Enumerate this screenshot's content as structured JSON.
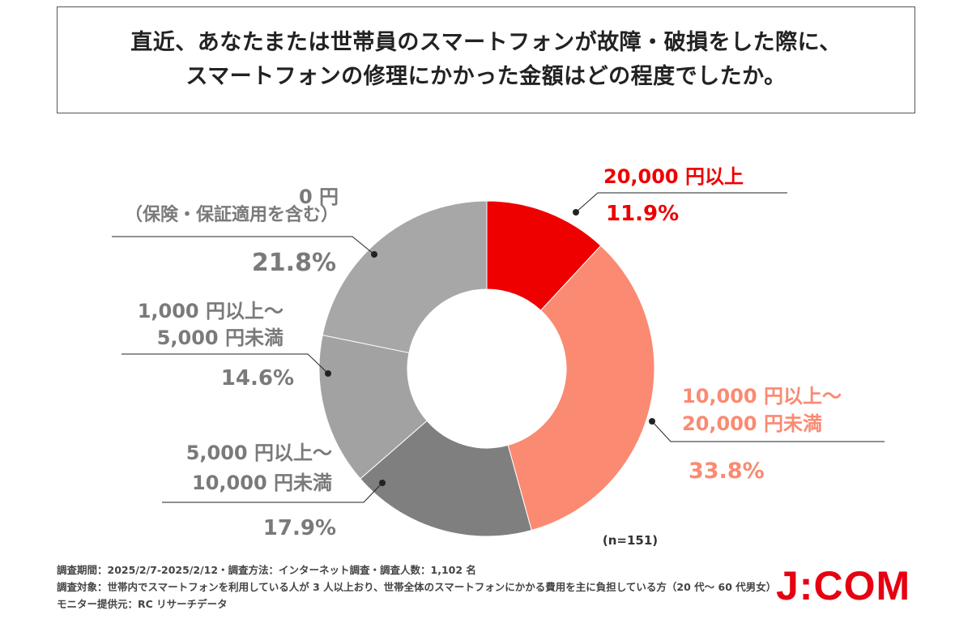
{
  "title": {
    "line1": "直近、あなたまたは世帯員のスマートフォンが故障・破損をした際に、",
    "line2": "スマートフォンの修理にかかった金額はどの程度でしたか。"
  },
  "chart_data": {
    "type": "pie",
    "donut": true,
    "categories": [
      "20,000 円以上",
      "10,000 円以上～20,000 円未満",
      "5,000 円以上～10,000 円未満",
      "1,000 円以上～5,000 円未満",
      "0 円（保険・保証適用を含む）"
    ],
    "values": [
      11.9,
      33.8,
      17.9,
      14.6,
      21.8
    ],
    "value_labels": [
      "11.9%",
      "33.8%",
      "17.9%",
      "14.6%",
      "21.8%"
    ],
    "label_lines": [
      [
        "20,000 円以上"
      ],
      [
        "10,000 円以上～",
        "20,000 円未満"
      ],
      [
        "5,000 円以上～",
        "10,000 円未満"
      ],
      [
        "1,000 円以上～",
        "5,000 円未満"
      ],
      [
        "0 円",
        "（保険・保証適用を含む）"
      ]
    ],
    "colors": [
      "#ee0000",
      "#fa8a72",
      "#7f7f7f",
      "#a2a2a2",
      "#a7a7a7"
    ],
    "label_colors": [
      "#ee0000",
      "#fa8a72",
      "#7a7a7a",
      "#7a7a7a",
      "#7a7a7a"
    ],
    "note": "(n=151)"
  },
  "footer": {
    "line1": "調査期間：2025/2/7-2025/2/12・調査方法：インターネット調査・調査人数：1,102 名",
    "line2": "調査対象：世帯内でスマートフォンを利用している人が 3 人以上おり、世帯全体のスマートフォンにかかる費用を主に負担している方（20 代～ 60 代男女）",
    "line3": "モニター提供元：RC リサーチデータ"
  },
  "logo": "J:COM"
}
